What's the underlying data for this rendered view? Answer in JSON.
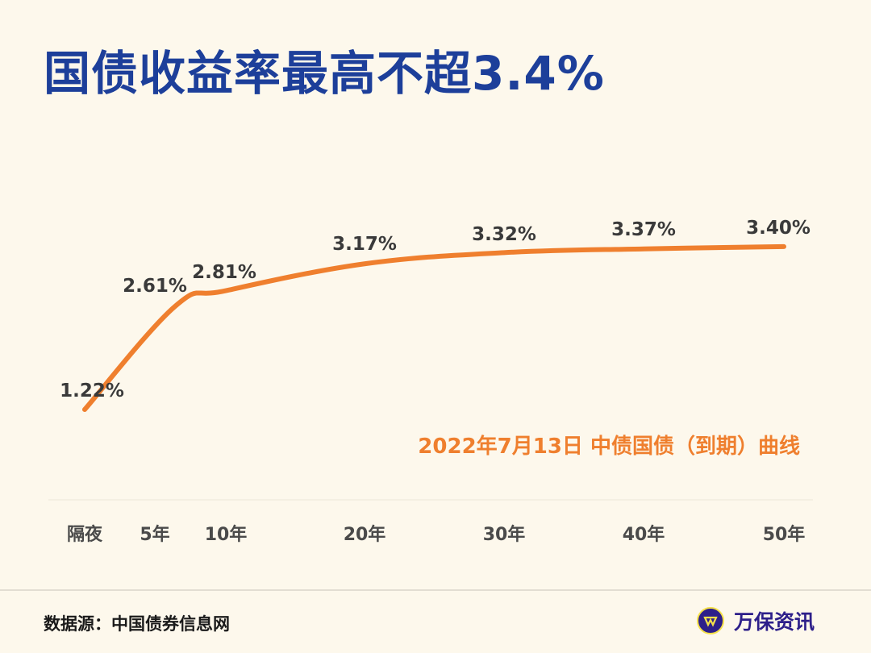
{
  "title": "国债收益率最高不超3.4%",
  "chart_data": {
    "type": "line",
    "title": "国债收益率最高不超3.4%",
    "annotation": "2022年7月13日 中债国债（到期）曲线",
    "categories": [
      "隔夜",
      "5年",
      "10年",
      "20年",
      "30年",
      "40年",
      "50年"
    ],
    "values": [
      1.22,
      2.61,
      2.81,
      3.17,
      3.32,
      3.37,
      3.4
    ],
    "data_labels": [
      "1.22%",
      "2.61%",
      "2.81%",
      "3.17%",
      "3.32%",
      "3.37%",
      "3.40%"
    ],
    "unit": "%",
    "grid": false,
    "line_color": "#ef7f2e"
  },
  "footer": {
    "source": "数据源：中国债券信息网",
    "brand": "万保资讯"
  },
  "colors": {
    "title": "#1d3f9a",
    "brand": "#2d1f8a",
    "background": "#fdf8ec"
  }
}
